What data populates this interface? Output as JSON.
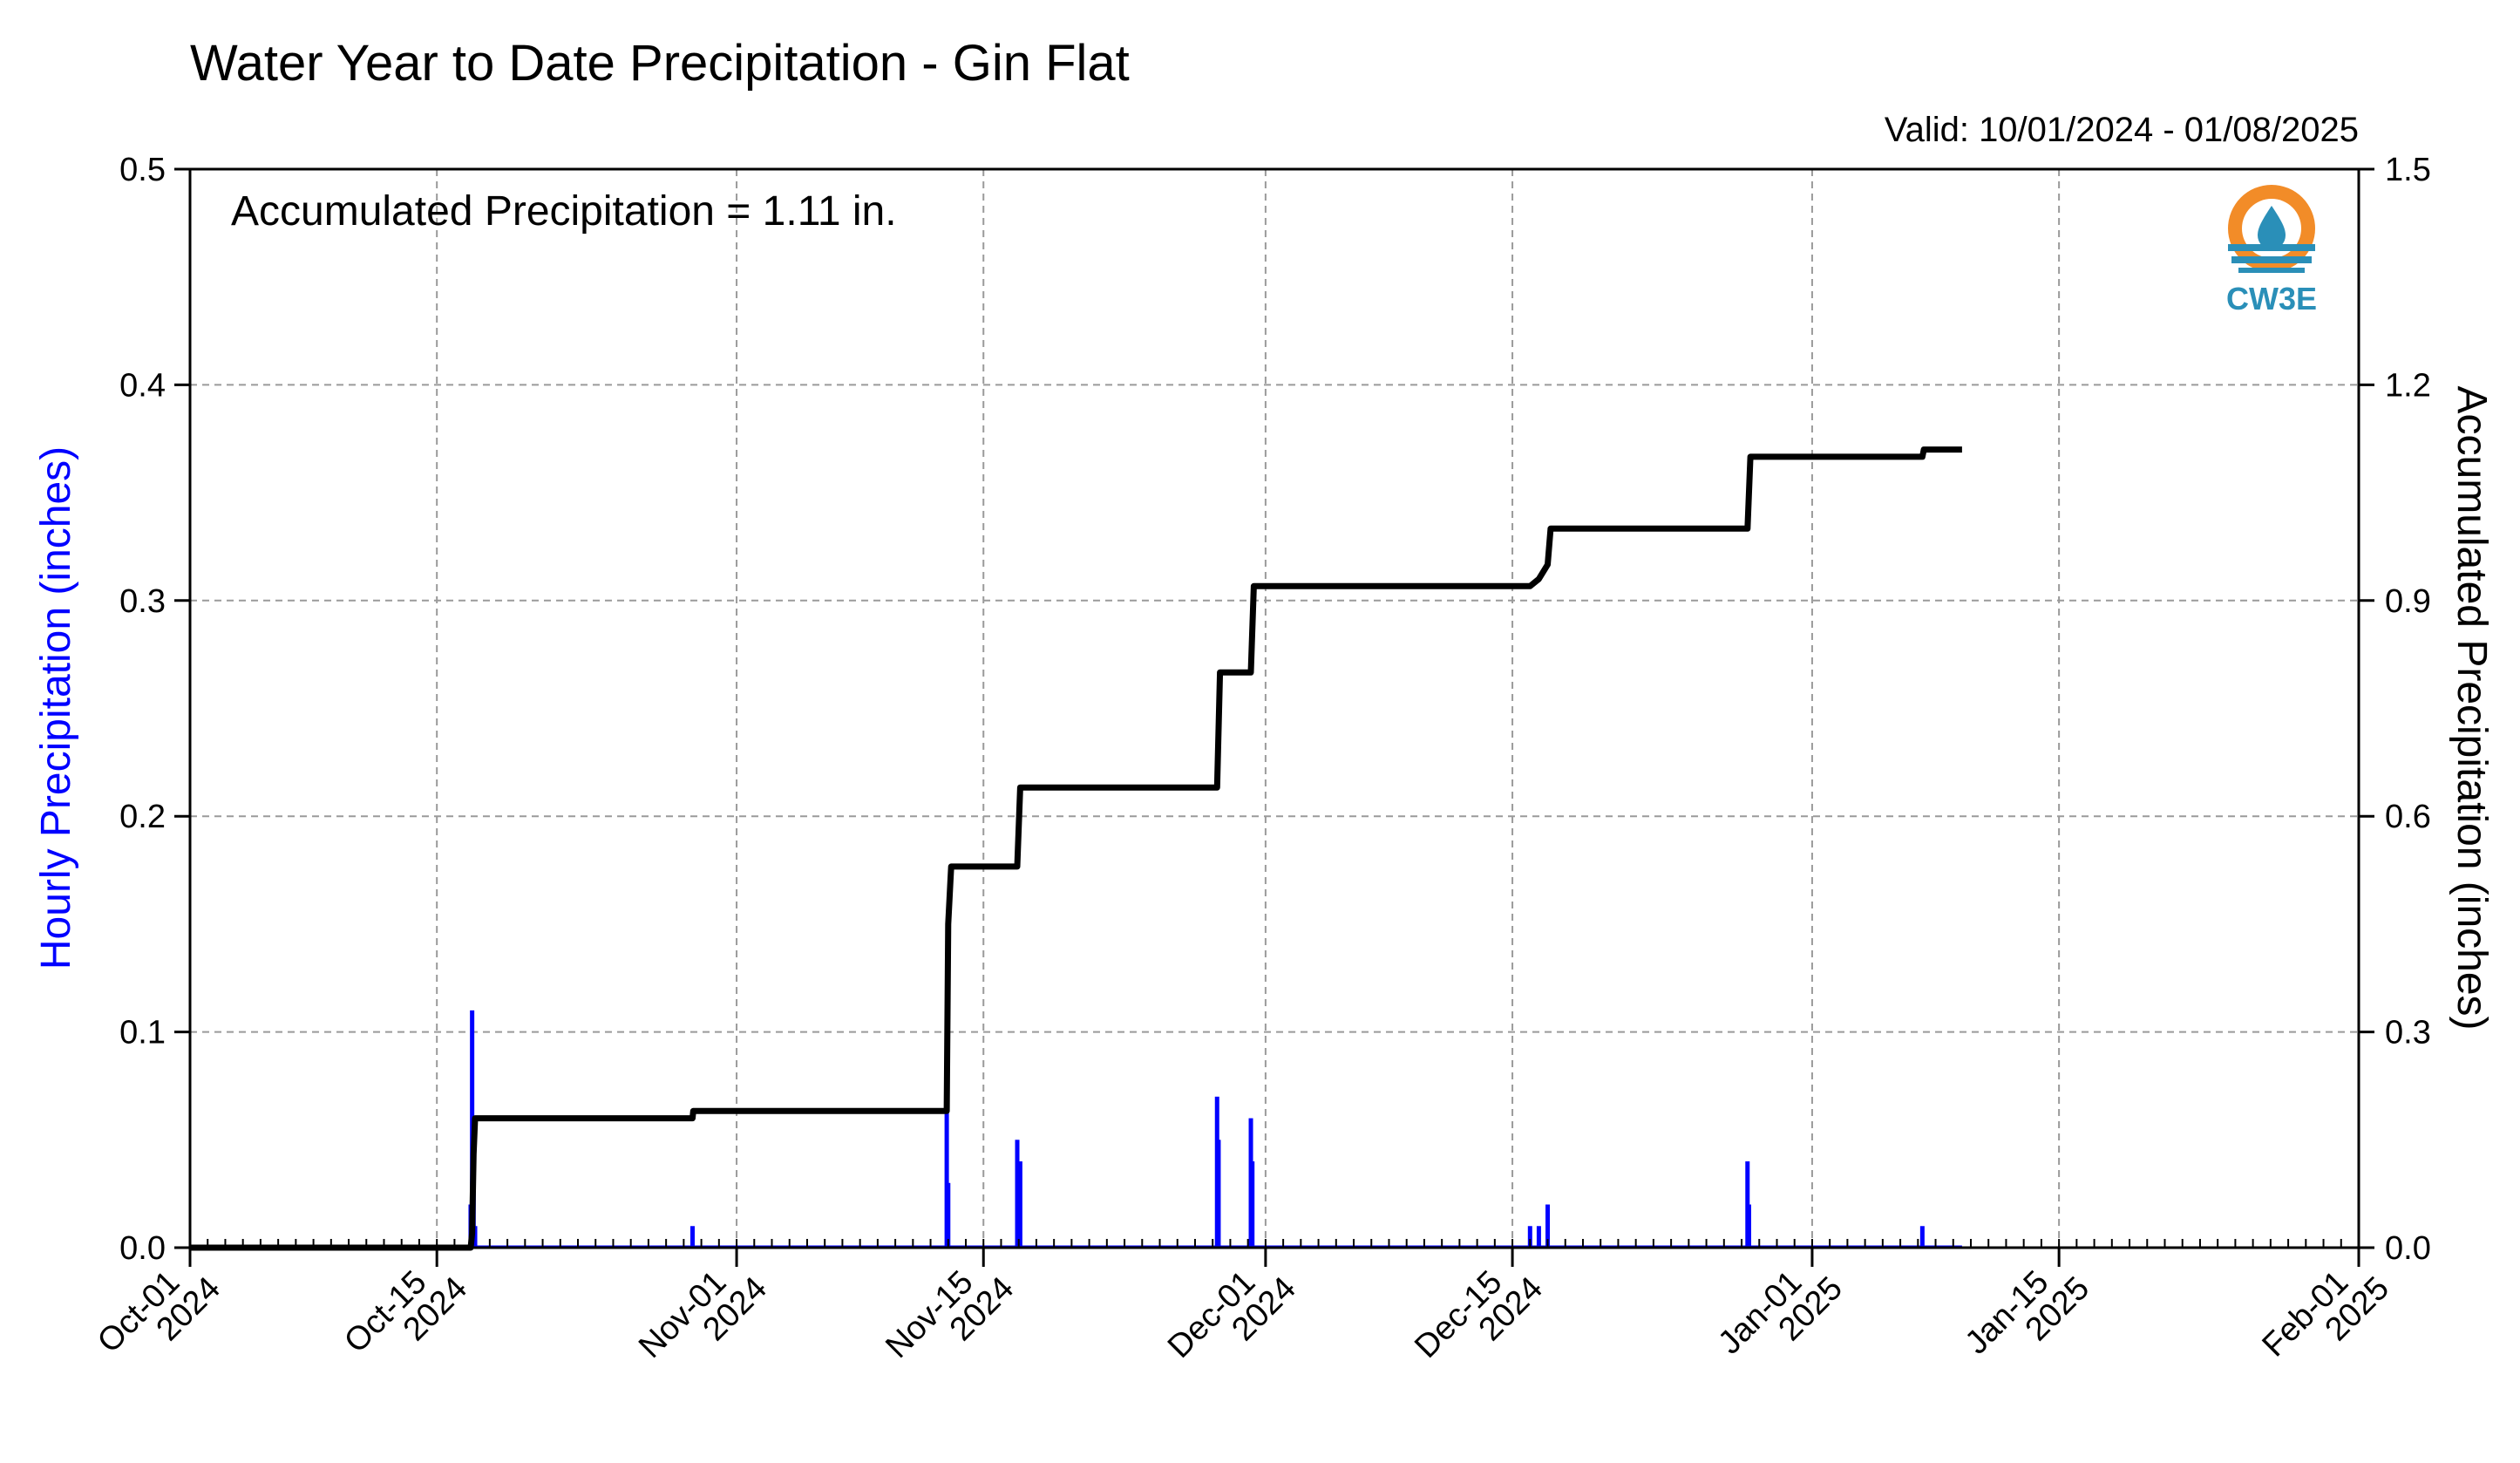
{
  "chart_data": {
    "type": "bar+line",
    "title": "Water Year to Date Precipitation - Gin Flat",
    "subtitle": "Valid: 10/01/2024 - 01/08/2025",
    "annotation": "Accumulated Precipitation = 1.11 in.",
    "logo_text": "CW3E",
    "ylabel_left": "Hourly Precipitation (inches)",
    "ylabel_right": "Accumulated Precipitation (inches)",
    "ylim_left": [
      0,
      0.5
    ],
    "ylim_right": [
      0,
      1.5
    ],
    "xlim": [
      "2024-10-01",
      "2025-02-01"
    ],
    "grid": true,
    "x_ticks": [
      {
        "date": "2024-10-01",
        "label1": "Oct-01",
        "label2": "2024"
      },
      {
        "date": "2024-10-15",
        "label1": "Oct-15",
        "label2": "2024"
      },
      {
        "date": "2024-11-01",
        "label1": "Nov-01",
        "label2": "2024"
      },
      {
        "date": "2024-11-15",
        "label1": "Nov-15",
        "label2": "2024"
      },
      {
        "date": "2024-12-01",
        "label1": "Dec-01",
        "label2": "2024"
      },
      {
        "date": "2024-12-15",
        "label1": "Dec-15",
        "label2": "2024"
      },
      {
        "date": "2025-01-01",
        "label1": "Jan-01",
        "label2": "2025"
      },
      {
        "date": "2025-01-15",
        "label1": "Jan-15",
        "label2": "2025"
      },
      {
        "date": "2025-02-01",
        "label1": "Feb-01",
        "label2": "2025"
      }
    ],
    "y_ticks_left": [
      "0.0",
      "0.1",
      "0.2",
      "0.3",
      "0.4",
      "0.5"
    ],
    "y_ticks_right": [
      "0.0",
      "0.3",
      "0.6",
      "0.9",
      "1.2",
      "1.5"
    ],
    "series": [
      {
        "type": "bar",
        "axis": "left",
        "color": "#0000ff",
        "points": [
          [
            "2024-10-16T22",
            0.02
          ],
          [
            "2024-10-17T00",
            0.11
          ],
          [
            "2024-10-17T02",
            0.06
          ],
          [
            "2024-10-17T04",
            0.01
          ],
          [
            "2024-10-29T12",
            0.01
          ],
          [
            "2024-11-12T22",
            0.07
          ],
          [
            "2024-11-13T00",
            0.03
          ],
          [
            "2024-11-16T22",
            0.05
          ],
          [
            "2024-11-17T02",
            0.04
          ],
          [
            "2024-11-28T06",
            0.07
          ],
          [
            "2024-11-28T08",
            0.05
          ],
          [
            "2024-11-30T04",
            0.06
          ],
          [
            "2024-11-30T06",
            0.04
          ],
          [
            "2024-12-16T00",
            0.01
          ],
          [
            "2024-12-16T12",
            0.01
          ],
          [
            "2024-12-17T00",
            0.02
          ],
          [
            "2024-12-28T08",
            0.04
          ],
          [
            "2024-12-28T10",
            0.02
          ],
          [
            "2025-01-07T06",
            0.01
          ]
        ]
      },
      {
        "type": "line",
        "axis": "right",
        "color": "#000000",
        "points": [
          [
            "2024-10-01",
            0.0
          ],
          [
            "2024-10-16T22",
            0.0
          ],
          [
            "2024-10-17T00",
            0.02
          ],
          [
            "2024-10-17T02",
            0.13
          ],
          [
            "2024-10-17T04",
            0.18
          ],
          [
            "2024-10-29T12",
            0.18
          ],
          [
            "2024-10-29T13",
            0.19
          ],
          [
            "2024-11-12T22",
            0.19
          ],
          [
            "2024-11-13T00",
            0.45
          ],
          [
            "2024-11-13T04",
            0.53
          ],
          [
            "2024-11-16T22",
            0.53
          ],
          [
            "2024-11-17T02",
            0.64
          ],
          [
            "2024-11-28T06",
            0.64
          ],
          [
            "2024-11-28T10",
            0.8
          ],
          [
            "2024-11-30T04",
            0.8
          ],
          [
            "2024-11-30T08",
            0.92
          ],
          [
            "2024-12-16T00",
            0.92
          ],
          [
            "2024-12-16T12",
            0.93
          ],
          [
            "2024-12-17T00",
            0.95
          ],
          [
            "2024-12-17T04",
            1.0
          ],
          [
            "2024-12-28T08",
            1.0
          ],
          [
            "2024-12-28T12",
            1.1
          ],
          [
            "2025-01-07T06",
            1.1
          ],
          [
            "2025-01-07T08",
            1.11
          ],
          [
            "2025-01-09T12",
            1.11
          ]
        ]
      }
    ]
  }
}
